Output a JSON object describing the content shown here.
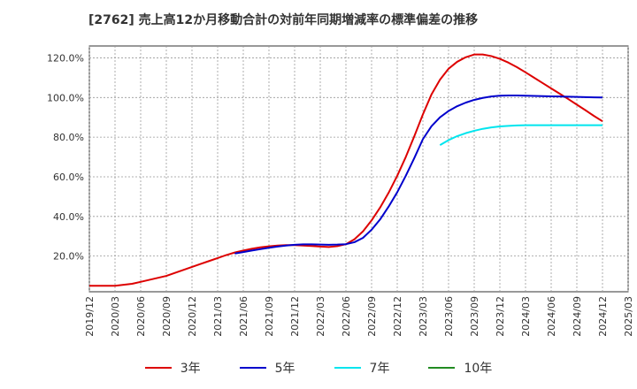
{
  "chart_data": {
    "type": "line",
    "title": "[2762]  売上高12か月移動合計の対前年同期増減率の標準偏差の推移",
    "x_ticks": [
      "2019/12",
      "2020/03",
      "2020/06",
      "2020/09",
      "2020/12",
      "2021/03",
      "2021/06",
      "2021/09",
      "2021/12",
      "2022/03",
      "2022/06",
      "2022/09",
      "2022/12",
      "2023/03",
      "2023/06",
      "2023/09",
      "2023/12",
      "2024/03",
      "2024/06",
      "2024/09",
      "2024/12",
      "2025/03"
    ],
    "y_ticks": [
      "20.0%",
      "40.0%",
      "60.0%",
      "80.0%",
      "100.0%",
      "120.0%"
    ],
    "ylim": [
      2,
      126
    ],
    "y_unit": "%",
    "grid": true,
    "legend_position": "bottom",
    "series": [
      {
        "name": "3年",
        "color": "#dd0000",
        "x": [
          "2019/12",
          "2020/01",
          "2020/02",
          "2020/03",
          "2020/04",
          "2020/05",
          "2020/06",
          "2020/07",
          "2020/08",
          "2020/09",
          "2020/10",
          "2020/11",
          "2020/12",
          "2021/01",
          "2021/02",
          "2021/03",
          "2021/04",
          "2021/05",
          "2021/06",
          "2021/07",
          "2021/08",
          "2021/09",
          "2021/10",
          "2021/11",
          "2021/12",
          "2022/01",
          "2022/02",
          "2022/03",
          "2022/04",
          "2022/05",
          "2022/06",
          "2022/07",
          "2022/08",
          "2022/09",
          "2022/10",
          "2022/11",
          "2022/12",
          "2023/01",
          "2023/02",
          "2023/03",
          "2023/04",
          "2023/05",
          "2023/06",
          "2023/07",
          "2023/08",
          "2023/09",
          "2023/10",
          "2023/11",
          "2023/12",
          "2024/01",
          "2024/02",
          "2024/03",
          "2024/04",
          "2024/05",
          "2024/06",
          "2024/07",
          "2024/08",
          "2024/09",
          "2024/10",
          "2024/11",
          "2024/12"
        ],
        "values": [
          5,
          5,
          5,
          5,
          5.5,
          6,
          7,
          8,
          9,
          10,
          11.5,
          13,
          14.5,
          16,
          17.5,
          19,
          20.5,
          21.8,
          22.8,
          23.7,
          24.4,
          24.9,
          25.3,
          25.5,
          25.5,
          25.3,
          25.1,
          24.8,
          24.6,
          25,
          26,
          28.5,
          32.5,
          38,
          44.5,
          52,
          60.5,
          70,
          80.5,
          91.5,
          101.5,
          109,
          114.5,
          118,
          120.3,
          121.7,
          121.7,
          120.9,
          119.5,
          117.6,
          115.3,
          112.7,
          110,
          107.3,
          104.6,
          101.9,
          99.2,
          96.4,
          93.6,
          90.7,
          88
        ]
      },
      {
        "name": "5年",
        "color": "#0000cc",
        "x": [
          "2021/05",
          "2021/06",
          "2021/07",
          "2021/08",
          "2021/09",
          "2021/10",
          "2021/11",
          "2021/12",
          "2022/01",
          "2022/02",
          "2022/03",
          "2022/04",
          "2022/05",
          "2022/06",
          "2022/07",
          "2022/08",
          "2022/09",
          "2022/10",
          "2022/11",
          "2022/12",
          "2023/01",
          "2023/02",
          "2023/03",
          "2023/04",
          "2023/05",
          "2023/06",
          "2023/07",
          "2023/08",
          "2023/09",
          "2023/10",
          "2023/11",
          "2023/12",
          "2024/01",
          "2024/02",
          "2024/03",
          "2024/04",
          "2024/05",
          "2024/06",
          "2024/07",
          "2024/08",
          "2024/09",
          "2024/10",
          "2024/11",
          "2024/12"
        ],
        "values": [
          21.3,
          22,
          22.8,
          23.5,
          24.2,
          24.8,
          25.3,
          25.7,
          25.9,
          25.9,
          25.8,
          25.7,
          25.8,
          26,
          27,
          29.2,
          33.3,
          38.5,
          45,
          52.2,
          60.5,
          69.5,
          79,
          85.5,
          90,
          93.2,
          95.6,
          97.4,
          98.8,
          99.8,
          100.5,
          100.9,
          101,
          101,
          100.9,
          100.8,
          100.7,
          100.6,
          100.5,
          100.4,
          100.3,
          100.2,
          100.1,
          100
        ]
      },
      {
        "name": "7年",
        "color": "#00e5ee",
        "x": [
          "2023/05",
          "2023/06",
          "2023/07",
          "2023/08",
          "2023/09",
          "2023/10",
          "2023/11",
          "2023/12",
          "2024/01",
          "2024/02",
          "2024/03",
          "2024/04",
          "2024/05",
          "2024/06",
          "2024/07",
          "2024/08",
          "2024/09",
          "2024/10",
          "2024/11",
          "2024/12"
        ],
        "values": [
          76,
          78.5,
          80.5,
          82,
          83.2,
          84.2,
          84.9,
          85.4,
          85.7,
          85.9,
          86,
          86,
          86,
          86,
          86,
          86,
          86,
          86,
          86,
          86
        ]
      },
      {
        "name": "10年",
        "color": "#228b22",
        "x": [],
        "values": []
      }
    ]
  }
}
